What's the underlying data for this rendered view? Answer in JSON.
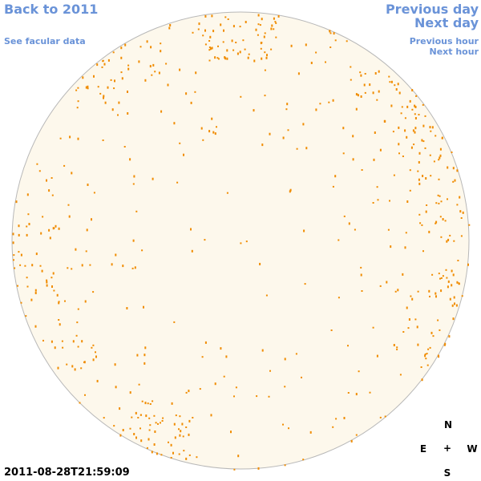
{
  "nav": {
    "back_year": "Back to 2011",
    "facular": "See facular data",
    "prev_day": "Previous day",
    "next_day": "Next day",
    "prev_hour": "Previous hour",
    "next_hour": "Next hour"
  },
  "compass": {
    "north": "N",
    "east": "E",
    "center": "+",
    "west": "W",
    "south": "S"
  },
  "timestamp": "2011-08-28T21:59:09"
}
